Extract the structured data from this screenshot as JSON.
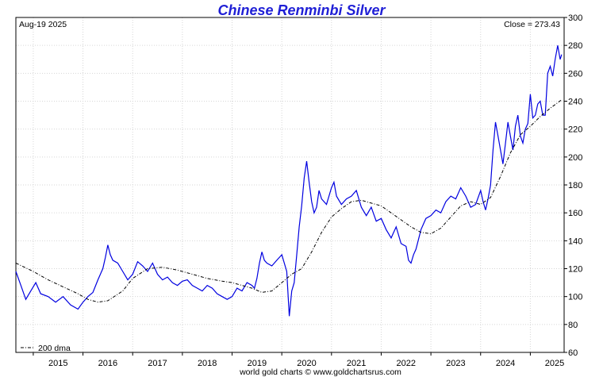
{
  "chart_data": {
    "type": "line",
    "title": "Chinese Renminbi Silver",
    "date_label": "Aug-19  2025",
    "close_label": "Close = 273.43",
    "footer": "world gold charts © www.goldchartsrus.com",
    "legend": {
      "label": "200 dma",
      "placement": "bottom-left"
    },
    "ylim": [
      60,
      300
    ],
    "yticks": [
      60,
      80,
      100,
      120,
      140,
      160,
      180,
      200,
      220,
      240,
      260,
      280,
      300
    ],
    "xlim": [
      2014.65,
      2025.68
    ],
    "xticks": [
      "2015",
      "2016",
      "2017",
      "2018",
      "2019",
      "2020",
      "2021",
      "2022",
      "2023",
      "2024",
      "2025"
    ],
    "grid": true,
    "series": [
      {
        "name": "",
        "color": "#0000e0",
        "x": [
          2014.65,
          2014.75,
          2014.85,
          2014.95,
          2015.05,
          2015.15,
          2015.3,
          2015.45,
          2015.6,
          2015.75,
          2015.9,
          2016.0,
          2016.1,
          2016.2,
          2016.3,
          2016.4,
          2016.45,
          2016.5,
          2016.55,
          2016.6,
          2016.7,
          2016.8,
          2016.9,
          2017.0,
          2017.1,
          2017.2,
          2017.3,
          2017.4,
          2017.5,
          2017.6,
          2017.7,
          2017.8,
          2017.9,
          2018.0,
          2018.1,
          2018.2,
          2018.3,
          2018.4,
          2018.5,
          2018.6,
          2018.7,
          2018.8,
          2018.9,
          2019.0,
          2019.1,
          2019.2,
          2019.3,
          2019.4,
          2019.45,
          2019.5,
          2019.55,
          2019.6,
          2019.65,
          2019.7,
          2019.8,
          2019.9,
          2020.0,
          2020.1,
          2020.15,
          2020.2,
          2020.25,
          2020.3,
          2020.35,
          2020.4,
          2020.45,
          2020.5,
          2020.55,
          2020.6,
          2020.65,
          2020.7,
          2020.75,
          2020.8,
          2020.9,
          2021.0,
          2021.05,
          2021.1,
          2021.2,
          2021.3,
          2021.4,
          2021.5,
          2021.6,
          2021.7,
          2021.8,
          2021.9,
          2022.0,
          2022.1,
          2022.2,
          2022.3,
          2022.4,
          2022.5,
          2022.55,
          2022.6,
          2022.65,
          2022.7,
          2022.8,
          2022.9,
          2023.0,
          2023.1,
          2023.2,
          2023.3,
          2023.4,
          2023.5,
          2023.6,
          2023.7,
          2023.8,
          2023.9,
          2024.0,
          2024.05,
          2024.1,
          2024.15,
          2024.2,
          2024.25,
          2024.3,
          2024.35,
          2024.4,
          2024.45,
          2024.5,
          2024.55,
          2024.6,
          2024.65,
          2024.7,
          2024.75,
          2024.8,
          2024.85,
          2024.9,
          2024.95,
          2025.0,
          2025.05,
          2025.1,
          2025.15,
          2025.2,
          2025.25,
          2025.3,
          2025.35,
          2025.4,
          2025.45,
          2025.5,
          2025.55,
          2025.6,
          2025.63
        ],
        "y": [
          118,
          108,
          98,
          104,
          110,
          102,
          100,
          96,
          100,
          94,
          91,
          96,
          100,
          103,
          112,
          120,
          128,
          137,
          130,
          126,
          124,
          118,
          112,
          116,
          125,
          122,
          118,
          124,
          116,
          112,
          114,
          110,
          108,
          111,
          112,
          108,
          106,
          104,
          108,
          106,
          102,
          100,
          98,
          100,
          106,
          104,
          110,
          108,
          106,
          113,
          124,
          132,
          126,
          124,
          122,
          126,
          130,
          118,
          86,
          104,
          110,
          130,
          150,
          165,
          185,
          197,
          182,
          168,
          160,
          164,
          176,
          170,
          166,
          178,
          182,
          172,
          166,
          170,
          172,
          176,
          164,
          158,
          164,
          154,
          156,
          148,
          142,
          150,
          138,
          136,
          126,
          124,
          130,
          134,
          148,
          156,
          158,
          162,
          160,
          168,
          172,
          170,
          178,
          172,
          164,
          166,
          176,
          168,
          162,
          170,
          180,
          205,
          225,
          215,
          205,
          195,
          210,
          225,
          215,
          205,
          222,
          230,
          215,
          210,
          220,
          224,
          245,
          228,
          230,
          238,
          240,
          230,
          230,
          260,
          265,
          258,
          270,
          280,
          270,
          273.43
        ]
      },
      {
        "name": "200 dma",
        "color": "#000000",
        "x": [
          2014.65,
          2015.0,
          2015.3,
          2015.6,
          2015.9,
          2016.1,
          2016.3,
          2016.5,
          2016.8,
          2017.0,
          2017.3,
          2017.6,
          2017.9,
          2018.2,
          2018.5,
          2018.8,
          2019.0,
          2019.2,
          2019.4,
          2019.6,
          2019.8,
          2020.0,
          2020.2,
          2020.4,
          2020.6,
          2020.8,
          2021.0,
          2021.2,
          2021.4,
          2021.6,
          2021.8,
          2022.0,
          2022.2,
          2022.4,
          2022.6,
          2022.8,
          2023.0,
          2023.2,
          2023.4,
          2023.6,
          2023.8,
          2024.0,
          2024.2,
          2024.4,
          2024.6,
          2024.8,
          2025.0,
          2025.2,
          2025.4,
          2025.63
        ],
        "y": [
          124,
          118,
          112,
          107,
          102,
          98,
          96,
          97,
          104,
          113,
          120,
          121,
          119,
          116,
          113,
          111,
          110,
          108,
          106,
          103,
          104,
          110,
          116,
          120,
          132,
          146,
          157,
          163,
          168,
          169,
          167,
          165,
          160,
          155,
          150,
          146,
          145,
          149,
          157,
          165,
          168,
          166,
          171,
          186,
          203,
          216,
          222,
          229,
          235,
          241
        ]
      }
    ]
  }
}
